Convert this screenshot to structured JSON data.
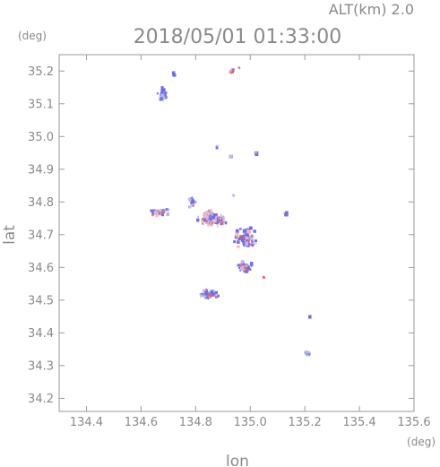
{
  "chart_data": {
    "type": "scatter",
    "header_alt": "ALT(km) 2.0",
    "title": "2018/05/01 01:33:00",
    "y_unit": "(deg)",
    "x_unit": "(deg)",
    "xlabel": "lon",
    "ylabel": "lat",
    "xlim": [
      134.3,
      135.6
    ],
    "ylim": [
      34.16,
      35.25
    ],
    "x_ticks": [
      "134.4",
      "134.6",
      "134.8",
      "135.0",
      "135.2",
      "135.4",
      "135.6"
    ],
    "y_ticks": [
      "34.2",
      "34.3",
      "34.4",
      "34.5",
      "34.6",
      "34.7",
      "34.8",
      "34.9",
      "35.0",
      "35.1",
      "35.2"
    ],
    "grid": false,
    "colors": {
      "positive": "#e8606a",
      "negative": "#6f6fe8",
      "light_positive": "#f4b6bb",
      "light_negative": "#b9b9f4"
    },
    "clusters": [
      {
        "lon": 134.68,
        "lat": 35.13,
        "spread_lon": 0.025,
        "spread_lat": 0.025,
        "count": 25,
        "red_ratio": 0.05
      },
      {
        "lon": 134.72,
        "lat": 35.19,
        "spread_lon": 0.01,
        "spread_lat": 0.008,
        "count": 4,
        "red_ratio": 0.0
      },
      {
        "lon": 134.93,
        "lat": 35.2,
        "spread_lon": 0.01,
        "spread_lat": 0.005,
        "count": 6,
        "red_ratio": 0.2
      },
      {
        "lon": 134.96,
        "lat": 35.21,
        "spread_lon": 0.004,
        "spread_lat": 0.003,
        "count": 2,
        "red_ratio": 1.0
      },
      {
        "lon": 134.88,
        "lat": 34.97,
        "spread_lon": 0.008,
        "spread_lat": 0.004,
        "count": 4,
        "red_ratio": 0.0
      },
      {
        "lon": 135.02,
        "lat": 34.95,
        "spread_lon": 0.008,
        "spread_lat": 0.004,
        "count": 4,
        "red_ratio": 0.2
      },
      {
        "lon": 134.93,
        "lat": 34.94,
        "spread_lon": 0.004,
        "spread_lat": 0.003,
        "count": 2,
        "red_ratio": 0.0
      },
      {
        "lon": 134.66,
        "lat": 34.77,
        "spread_lon": 0.05,
        "spread_lat": 0.012,
        "count": 45,
        "red_ratio": 0.35
      },
      {
        "lon": 134.79,
        "lat": 34.8,
        "spread_lon": 0.02,
        "spread_lat": 0.025,
        "count": 20,
        "red_ratio": 0.15
      },
      {
        "lon": 134.86,
        "lat": 34.75,
        "spread_lon": 0.06,
        "spread_lat": 0.03,
        "count": 110,
        "red_ratio": 0.3
      },
      {
        "lon": 134.98,
        "lat": 34.69,
        "spread_lon": 0.05,
        "spread_lat": 0.04,
        "count": 80,
        "red_ratio": 0.35
      },
      {
        "lon": 134.98,
        "lat": 34.6,
        "spread_lon": 0.04,
        "spread_lat": 0.025,
        "count": 55,
        "red_ratio": 0.35
      },
      {
        "lon": 134.85,
        "lat": 34.52,
        "spread_lon": 0.04,
        "spread_lat": 0.02,
        "count": 60,
        "red_ratio": 0.25
      },
      {
        "lon": 135.13,
        "lat": 34.76,
        "spread_lon": 0.012,
        "spread_lat": 0.012,
        "count": 6,
        "red_ratio": 0.3
      },
      {
        "lon": 135.21,
        "lat": 34.34,
        "spread_lon": 0.012,
        "spread_lat": 0.006,
        "count": 14,
        "red_ratio": 0.0
      },
      {
        "lon": 135.22,
        "lat": 34.45,
        "spread_lon": 0.003,
        "spread_lat": 0.003,
        "count": 1,
        "red_ratio": 0.0
      },
      {
        "lon": 135.05,
        "lat": 34.57,
        "spread_lon": 0.004,
        "spread_lat": 0.003,
        "count": 2,
        "red_ratio": 1.0
      },
      {
        "lon": 134.94,
        "lat": 34.82,
        "spread_lon": 0.004,
        "spread_lat": 0.003,
        "count": 2,
        "red_ratio": 0.0
      }
    ]
  }
}
